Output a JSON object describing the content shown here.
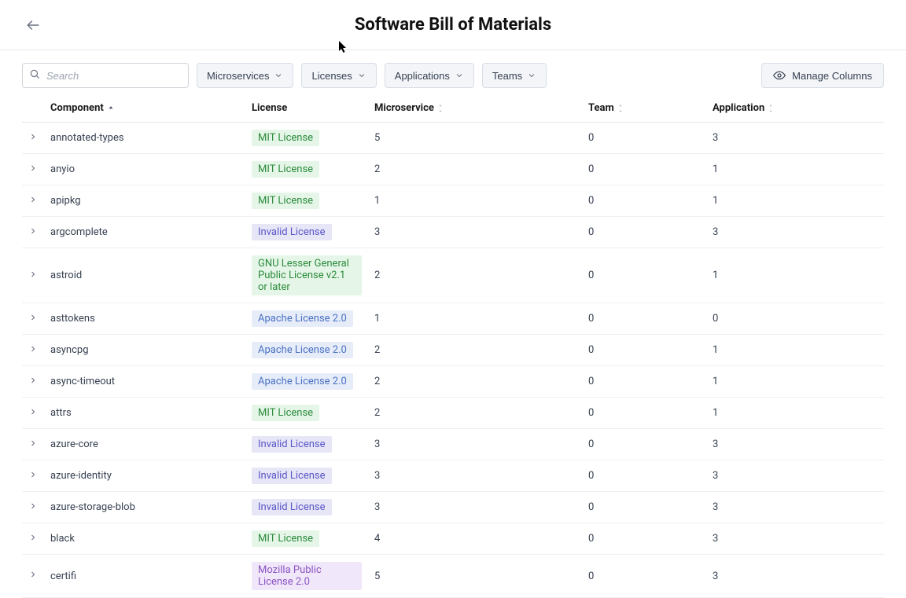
{
  "header": {
    "title": "Software Bill of Materials"
  },
  "toolbar": {
    "search_placeholder": "Search",
    "filters": [
      {
        "label": "Microservices"
      },
      {
        "label": "Licenses"
      },
      {
        "label": "Applications"
      },
      {
        "label": "Teams"
      }
    ],
    "manage_columns_label": "Manage Columns"
  },
  "columns": {
    "component": "Component",
    "license": "License",
    "microservice": "Microservice",
    "team": "Team",
    "application": "Application"
  },
  "license_styles": {
    "mit": {
      "color": "#2a8a3a",
      "bg": "#e5f6e8"
    },
    "invalid": {
      "color": "#5a56c9",
      "bg": "#e7e6f7"
    },
    "lgpl": {
      "color": "#2a8a3a",
      "bg": "#e5f6e8"
    },
    "apache": {
      "color": "#4b70c4",
      "bg": "#e6edf9"
    },
    "mpl": {
      "color": "#8a54c2",
      "bg": "#f1e7fa"
    }
  },
  "rows": [
    {
      "component": "annotated-types",
      "license_key": "mit",
      "license_text": "MIT License",
      "microservice": "5",
      "team": "0",
      "application": "3"
    },
    {
      "component": "anyio",
      "license_key": "mit",
      "license_text": "MIT License",
      "microservice": "2",
      "team": "0",
      "application": "1"
    },
    {
      "component": "apipkg",
      "license_key": "mit",
      "license_text": "MIT License",
      "microservice": "1",
      "team": "0",
      "application": "1"
    },
    {
      "component": "argcomplete",
      "license_key": "invalid",
      "license_text": "Invalid License",
      "microservice": "3",
      "team": "0",
      "application": "3"
    },
    {
      "component": "astroid",
      "license_key": "lgpl",
      "license_text": "GNU Lesser General Public License v2.1 or later",
      "microservice": "2",
      "team": "0",
      "application": "1"
    },
    {
      "component": "asttokens",
      "license_key": "apache",
      "license_text": "Apache License 2.0",
      "microservice": "1",
      "team": "0",
      "application": "0"
    },
    {
      "component": "asyncpg",
      "license_key": "apache",
      "license_text": "Apache License 2.0",
      "microservice": "2",
      "team": "0",
      "application": "1"
    },
    {
      "component": "async-timeout",
      "license_key": "apache",
      "license_text": "Apache License 2.0",
      "microservice": "2",
      "team": "0",
      "application": "1"
    },
    {
      "component": "attrs",
      "license_key": "mit",
      "license_text": "MIT License",
      "microservice": "2",
      "team": "0",
      "application": "1"
    },
    {
      "component": "azure-core",
      "license_key": "invalid",
      "license_text": "Invalid License",
      "microservice": "3",
      "team": "0",
      "application": "3"
    },
    {
      "component": "azure-identity",
      "license_key": "invalid",
      "license_text": "Invalid License",
      "microservice": "3",
      "team": "0",
      "application": "3"
    },
    {
      "component": "azure-storage-blob",
      "license_key": "invalid",
      "license_text": "Invalid License",
      "microservice": "3",
      "team": "0",
      "application": "3"
    },
    {
      "component": "black",
      "license_key": "mit",
      "license_text": "MIT License",
      "microservice": "4",
      "team": "0",
      "application": "3"
    },
    {
      "component": "certifi",
      "license_key": "mpl",
      "license_text": "Mozilla Public License 2.0",
      "microservice": "5",
      "team": "0",
      "application": "3"
    }
  ]
}
